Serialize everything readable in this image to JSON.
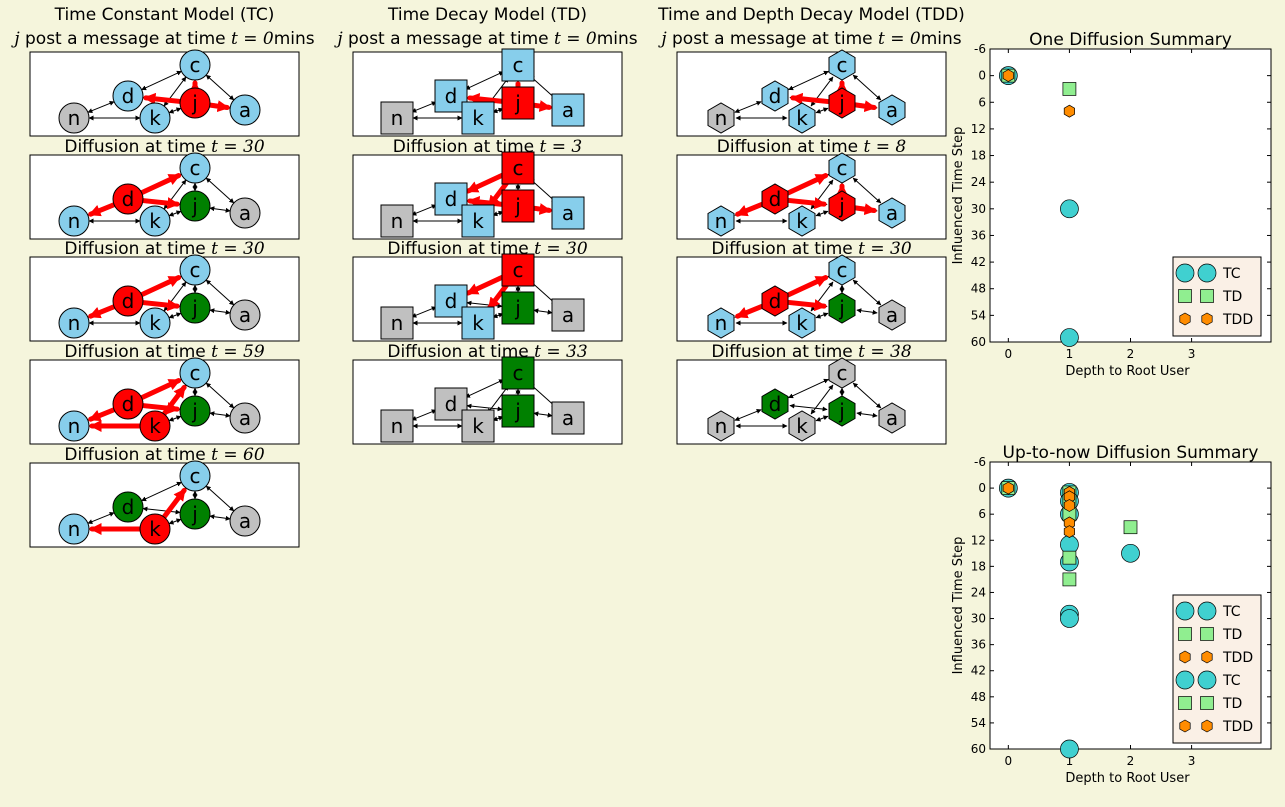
{
  "colors": {
    "background": "#f5f5dc",
    "panel": "#ffffff",
    "active": "#ff0000",
    "uninformed": "#87ceeb",
    "spent": "#008000",
    "neutral": "#c0c0c0",
    "influence_edge": "#ff0000",
    "tc_marker": "#40d0d0",
    "td_marker": "#90ee90",
    "tdd_marker": "#ff8c00"
  },
  "columns": [
    {
      "model": "TC",
      "shape": "circle",
      "title": "Time Constant Model (TC)",
      "subtitle_prefix": "j",
      "subtitle_text": " post a message at time ",
      "subtitle_math": "t = 0",
      "subtitle_unit": "mins",
      "panels": [
        {
          "title_text": "",
          "title_math": "",
          "states": {
            "a": "uninformed",
            "c": "uninformed",
            "d": "uninformed",
            "j": "active",
            "k": "uninformed",
            "n": "neutral"
          },
          "red_edges": [
            "j-c",
            "j-d",
            "j-a"
          ]
        },
        {
          "title_text": "Diffusion at time ",
          "title_math": "t = 30",
          "states": {
            "a": "neutral",
            "c": "uninformed",
            "d": "active",
            "j": "spent",
            "k": "uninformed",
            "n": "uninformed"
          },
          "red_edges": [
            "d-c",
            "d-n",
            "d-j"
          ]
        },
        {
          "title_text": "Diffusion at time ",
          "title_math": "t = 30",
          "states": {
            "a": "neutral",
            "c": "uninformed",
            "d": "active",
            "j": "spent",
            "k": "uninformed",
            "n": "uninformed"
          },
          "red_edges": [
            "d-c",
            "d-n",
            "d-j"
          ]
        },
        {
          "title_text": "Diffusion at time ",
          "title_math": "t = 59",
          "states": {
            "a": "neutral",
            "c": "uninformed",
            "d": "active",
            "j": "spent",
            "k": "active",
            "n": "uninformed"
          },
          "red_edges": [
            "d-c",
            "d-n",
            "d-j",
            "k-n",
            "k-c"
          ]
        },
        {
          "title_text": "Diffusion at time ",
          "title_math": "t = 60",
          "states": {
            "a": "neutral",
            "c": "uninformed",
            "d": "spent",
            "j": "spent",
            "k": "active",
            "n": "uninformed"
          },
          "red_edges": [
            "k-n",
            "k-c"
          ]
        }
      ]
    },
    {
      "model": "TD",
      "shape": "square",
      "title": "Time Decay Model (TD)",
      "subtitle_prefix": "j",
      "subtitle_text": " post a message at time ",
      "subtitle_math": "t = 0",
      "subtitle_unit": "mins",
      "panels": [
        {
          "title_text": "",
          "title_math": "",
          "states": {
            "a": "uninformed",
            "c": "uninformed",
            "d": "uninformed",
            "j": "active",
            "k": "uninformed",
            "n": "neutral"
          },
          "red_edges": [
            "j-c",
            "j-d",
            "j-a"
          ]
        },
        {
          "title_text": "Diffusion at time ",
          "title_math": "t = 3",
          "states": {
            "a": "uninformed",
            "c": "active",
            "d": "uninformed",
            "j": "active",
            "k": "uninformed",
            "n": "neutral"
          },
          "red_edges": [
            "c-d",
            "c-k",
            "j-a",
            "j-d"
          ]
        },
        {
          "title_text": "Diffusion at time ",
          "title_math": "t = 30",
          "states": {
            "a": "neutral",
            "c": "active",
            "d": "uninformed",
            "j": "spent",
            "k": "uninformed",
            "n": "neutral"
          },
          "red_edges": [
            "c-d",
            "c-k"
          ]
        },
        {
          "title_text": "Diffusion at time ",
          "title_math": "t = 33",
          "states": {
            "a": "neutral",
            "c": "spent",
            "d": "neutral",
            "j": "spent",
            "k": "neutral",
            "n": "neutral"
          },
          "red_edges": []
        }
      ]
    },
    {
      "model": "TDD",
      "shape": "hexagon",
      "title": "Time and Depth Decay Model (TDD)",
      "subtitle_prefix": "j",
      "subtitle_text": " post a message at time ",
      "subtitle_math": "t = 0",
      "subtitle_unit": "mins",
      "panels": [
        {
          "title_text": "",
          "title_math": "",
          "states": {
            "a": "uninformed",
            "c": "uninformed",
            "d": "uninformed",
            "j": "active",
            "k": "uninformed",
            "n": "neutral"
          },
          "red_edges": [
            "j-c",
            "j-d",
            "j-a"
          ]
        },
        {
          "title_text": "Diffusion at time ",
          "title_math": "t = 8",
          "states": {
            "a": "uninformed",
            "c": "uninformed",
            "d": "active",
            "j": "active",
            "k": "uninformed",
            "n": "uninformed"
          },
          "red_edges": [
            "d-c",
            "d-n",
            "d-j",
            "j-a",
            "j-c"
          ]
        },
        {
          "title_text": "Diffusion at time ",
          "title_math": "t = 30",
          "states": {
            "a": "neutral",
            "c": "uninformed",
            "d": "active",
            "j": "spent",
            "k": "uninformed",
            "n": "uninformed"
          },
          "red_edges": [
            "d-c",
            "d-n",
            "d-j"
          ]
        },
        {
          "title_text": "Diffusion at time ",
          "title_math": "t = 38",
          "states": {
            "a": "neutral",
            "c": "neutral",
            "d": "spent",
            "j": "spent",
            "k": "neutral",
            "n": "neutral"
          },
          "red_edges": []
        }
      ]
    }
  ],
  "nodes": [
    "a",
    "c",
    "d",
    "j",
    "k",
    "n"
  ],
  "edges": [
    "c-d",
    "c-k",
    "c-j",
    "c-a",
    "d-n",
    "d-j",
    "k-n",
    "k-j",
    "j-a"
  ],
  "chart_data": [
    {
      "type": "scatter",
      "title": "One Diffusion Summary",
      "xlabel": "Depth to Root User",
      "ylabel": "Influenced Time Step",
      "xlim": [
        -0.3,
        4.3
      ],
      "ylim": [
        60,
        -6
      ],
      "xticks": [
        0,
        1,
        2,
        3
      ],
      "yticks": [
        -6,
        0,
        6,
        12,
        18,
        24,
        30,
        36,
        42,
        48,
        54,
        60
      ],
      "legend_position": "lower-right",
      "series": [
        {
          "name": "TC",
          "marker": "circle",
          "points": [
            [
              0,
              0
            ],
            [
              1,
              30
            ],
            [
              1,
              59
            ]
          ]
        },
        {
          "name": "TD",
          "marker": "square",
          "points": [
            [
              0,
              0
            ],
            [
              1,
              3
            ]
          ]
        },
        {
          "name": "TDD",
          "marker": "hexagon",
          "points": [
            [
              0,
              0
            ],
            [
              1,
              8
            ]
          ]
        }
      ]
    },
    {
      "type": "scatter",
      "title": "Up-to-now Diffusion Summary",
      "xlabel": "Depth to Root User",
      "ylabel": "Influenced Time Step",
      "xlim": [
        -0.3,
        4.3
      ],
      "ylim": [
        60,
        -6
      ],
      "xticks": [
        0,
        1,
        2,
        3
      ],
      "yticks": [
        -6,
        0,
        6,
        12,
        18,
        24,
        30,
        36,
        42,
        48,
        54,
        60
      ],
      "legend_position": "lower-right",
      "series": [
        {
          "name": "TC",
          "marker": "circle",
          "points": [
            [
              0,
              0
            ],
            [
              1,
              1
            ],
            [
              1,
              3
            ],
            [
              1,
              6
            ],
            [
              1,
              13
            ],
            [
              1,
              17
            ],
            [
              1,
              29
            ],
            [
              1,
              30
            ],
            [
              1,
              60
            ],
            [
              2,
              15
            ]
          ]
        },
        {
          "name": "TD",
          "marker": "square",
          "points": [
            [
              0,
              0
            ],
            [
              1,
              1
            ],
            [
              1,
              3
            ],
            [
              1,
              6
            ],
            [
              1,
              16
            ],
            [
              1,
              21
            ],
            [
              2,
              9
            ]
          ]
        },
        {
          "name": "TDD",
          "marker": "hexagon",
          "points": [
            [
              0,
              0
            ],
            [
              1,
              1
            ],
            [
              1,
              2
            ],
            [
              1,
              4
            ],
            [
              1,
              8
            ],
            [
              1,
              10
            ]
          ]
        },
        {
          "name": "TC",
          "marker": "circle",
          "points": []
        },
        {
          "name": "TD",
          "marker": "square",
          "points": []
        },
        {
          "name": "TDD",
          "marker": "hexagon",
          "points": []
        }
      ]
    }
  ]
}
